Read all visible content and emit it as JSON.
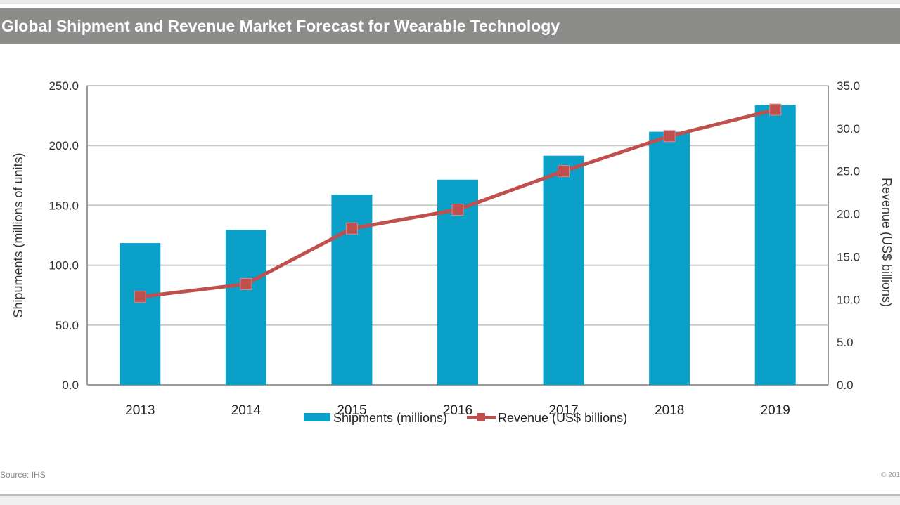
{
  "header": {
    "title": "Global Shipment and Revenue Market Forecast for Wearable Technology"
  },
  "footer": {
    "source": "Source: IHS",
    "copyright": "© 201"
  },
  "colors": {
    "bar": "#0aa0c8",
    "line": "#c0504d",
    "grid": "#c8c8c8",
    "axis": "#333333"
  },
  "chart_data": {
    "type": "bar",
    "categories": [
      "2013",
      "2014",
      "2015",
      "2016",
      "2017",
      "2018",
      "2019"
    ],
    "series": [
      {
        "name": "Shipments (millions)",
        "type": "bar",
        "axis": "left",
        "values": [
          118.5,
          129.5,
          159.0,
          171.5,
          191.5,
          211.5,
          234.0
        ]
      },
      {
        "name": "Revenue (US$ billions)",
        "type": "line",
        "axis": "right",
        "values": [
          10.3,
          11.8,
          18.3,
          20.5,
          25.0,
          29.1,
          32.2
        ]
      }
    ],
    "title": "",
    "ylabel_left": "Shipuments (millions of units)",
    "ylabel_right": "Revenue (US$ billions)",
    "ylim_left": [
      0,
      250
    ],
    "ylim_right": [
      0,
      35
    ],
    "yticks_left": [
      "0.0",
      "50.0",
      "100.0",
      "150.0",
      "200.0",
      "250.0"
    ],
    "yticks_right": [
      "0.0",
      "5.0",
      "10.0",
      "15.0",
      "20.0",
      "25.0",
      "30.0",
      "35.0"
    ],
    "grid": true,
    "legend_position": "bottom-center"
  }
}
